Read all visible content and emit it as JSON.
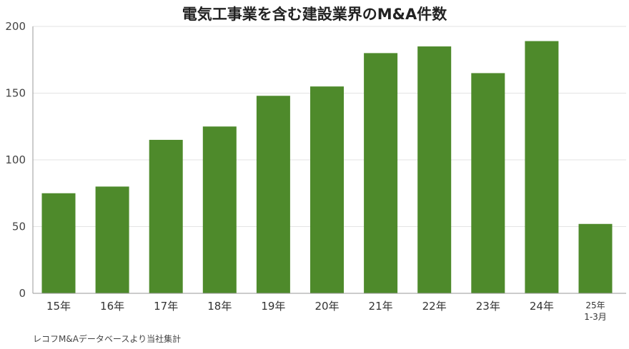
{
  "chart_data": {
    "type": "bar",
    "title": "電気工事業を含む建設業界のM&A件数",
    "categories": [
      "15年",
      "16年",
      "17年",
      "18年",
      "19年",
      "20年",
      "21年",
      "22年",
      "23年",
      "24年",
      "25年\n1-3月"
    ],
    "values": [
      75,
      80,
      115,
      125,
      148,
      155,
      180,
      185,
      165,
      189,
      52
    ],
    "ylim": [
      0,
      200
    ],
    "yticks": [
      0,
      50,
      100,
      150,
      200
    ],
    "xlabel": "",
    "ylabel": "",
    "grid": true,
    "bar_color": "#4e8a2b",
    "source": "レコフM&Aデータベースより当社集計"
  }
}
